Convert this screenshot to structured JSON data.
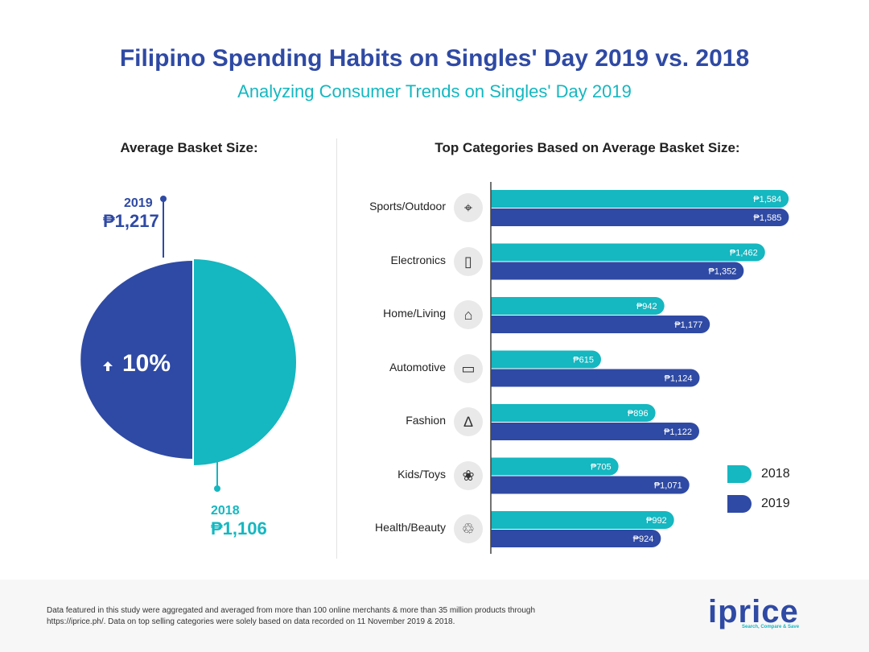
{
  "header": {
    "title": "Filipino Spending Habits on Singles' Day 2019 vs. 2018",
    "subtitle": "Analyzing Consumer Trends on Singles' Day 2019"
  },
  "left_panel": {
    "heading": "Average Basket Size:",
    "year_2019": "2019",
    "value_2019": "₱1,217",
    "year_2018": "2018",
    "value_2018": "₱1,106",
    "growth": "10%",
    "growth_icon": "arrow-up-icon"
  },
  "right_panel": {
    "heading": "Top Categories Based on Average Basket Size:"
  },
  "colors": {
    "c2018": "#15b7c0",
    "c2019": "#2f4aa4"
  },
  "chart_data": {
    "type": "bar",
    "orientation": "horizontal",
    "categories": [
      "Sports/Outdoor",
      "Electronics",
      "Home/Living",
      "Automotive",
      "Fashion",
      "Kids/Toys",
      "Health/Beauty"
    ],
    "category_icons": [
      "compass-icon",
      "phone-icon",
      "sofa-icon",
      "car-icon",
      "dress-icon",
      "teddy-bear-icon",
      "lotion-icon"
    ],
    "series": [
      {
        "name": "2018",
        "color": "#15b7c0",
        "values": [
          1584,
          1462,
          942,
          615,
          896,
          705,
          992
        ],
        "labels": [
          "₱1,584",
          "₱1,462",
          "₱942",
          "₱615",
          "₱896",
          "₱705",
          "₱992"
        ]
      },
      {
        "name": "2019",
        "color": "#2f4aa4",
        "values": [
          1585,
          1352,
          1177,
          1124,
          1122,
          1071,
          924
        ],
        "labels": [
          "₱1,585",
          "₱1,352",
          "₱1,177",
          "₱1,124",
          "₱1,122",
          "₱1,071",
          "₱924"
        ]
      }
    ],
    "legend": [
      "2018",
      "2019"
    ],
    "legend_position": "right"
  },
  "footer": {
    "note": "Data featured in this study were aggregated and averaged from more than 100 online merchants & more than 35 million products through https://iprice.ph/. Data on top selling categories were solely based on data recorded on 11 November 2019 & 2018.",
    "logo": "iprice",
    "tagline": "Search, Compare & Save"
  }
}
